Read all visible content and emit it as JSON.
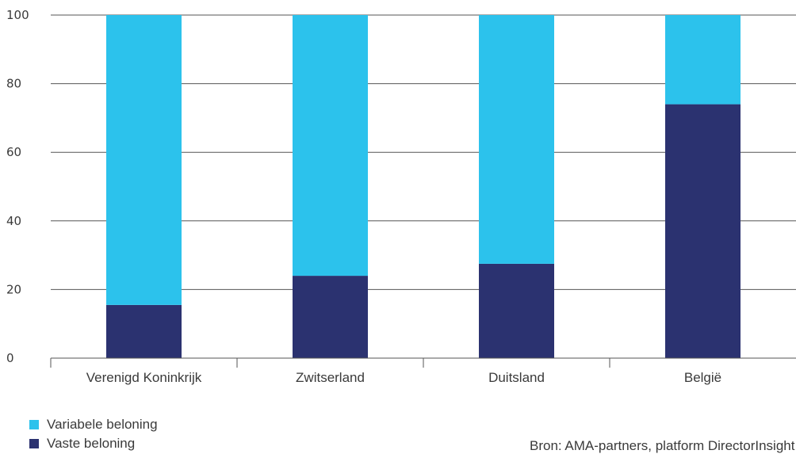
{
  "chart_data": {
    "type": "bar",
    "stacked": true,
    "categories": [
      "Verenigd Koninkrijk",
      "Zwitserland",
      "Duitsland",
      "België"
    ],
    "series": [
      {
        "name": "Vaste beloning",
        "color": "#2b3270",
        "values": [
          15.5,
          24,
          27.5,
          74
        ]
      },
      {
        "name": "Variabele beloning",
        "color": "#2cc2ec",
        "values": [
          84.5,
          76,
          72.5,
          26
        ]
      }
    ],
    "ylim": [
      0,
      100
    ],
    "yticks": [
      0,
      20,
      40,
      60,
      80,
      100
    ],
    "grid": true,
    "legend_position": "bottom-left"
  },
  "legend": {
    "variable_label": "Variabele beloning",
    "fixed_label": "Vaste beloning"
  },
  "source": "Bron: AMA-partners, platform DirectorInsight"
}
